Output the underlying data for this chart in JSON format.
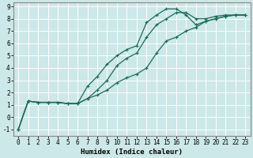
{
  "title": "",
  "xlabel": "Humidex (Indice chaleur)",
  "bg_color": "#cce8e8",
  "grid_color": "#ffffff",
  "line_color": "#1a6b5a",
  "xlim": [
    -0.5,
    23.5
  ],
  "ylim": [
    -1.5,
    9.3
  ],
  "xticks": [
    0,
    1,
    2,
    3,
    4,
    5,
    6,
    7,
    8,
    9,
    10,
    11,
    12,
    13,
    14,
    15,
    16,
    17,
    18,
    19,
    20,
    21,
    22,
    23
  ],
  "yticks": [
    -1,
    0,
    1,
    2,
    3,
    4,
    5,
    6,
    7,
    8,
    9
  ],
  "line1_x": [
    0,
    1,
    2,
    3,
    4,
    5,
    6,
    7,
    8,
    9,
    10,
    11,
    12,
    13,
    14,
    15,
    16,
    17,
    18,
    19,
    20,
    21,
    22,
    23
  ],
  "line1_y": [
    -1.0,
    1.3,
    1.2,
    1.2,
    1.2,
    1.1,
    1.1,
    1.5,
    1.8,
    2.2,
    2.8,
    3.2,
    3.5,
    4.0,
    5.2,
    6.2,
    6.5,
    7.0,
    7.3,
    7.8,
    8.0,
    8.2,
    8.3,
    8.3
  ],
  "line2_x": [
    0,
    1,
    2,
    3,
    4,
    5,
    6,
    7,
    8,
    9,
    10,
    11,
    12,
    13,
    14,
    15,
    16,
    17,
    18,
    19,
    20,
    21,
    22,
    23
  ],
  "line2_y": [
    -1.0,
    1.3,
    1.2,
    1.2,
    1.2,
    1.1,
    1.1,
    2.5,
    3.3,
    4.3,
    5.0,
    5.5,
    5.8,
    7.7,
    8.3,
    8.8,
    8.8,
    8.3,
    7.5,
    7.8,
    8.0,
    8.2,
    8.3,
    8.3
  ],
  "line3_x": [
    0,
    1,
    2,
    3,
    4,
    5,
    6,
    7,
    8,
    9,
    10,
    11,
    12,
    13,
    14,
    15,
    16,
    17,
    18,
    19,
    20,
    21,
    22,
    23
  ],
  "line3_y": [
    -1.0,
    1.3,
    1.2,
    1.2,
    1.2,
    1.1,
    1.1,
    1.5,
    2.2,
    3.0,
    4.2,
    4.8,
    5.2,
    6.5,
    7.5,
    8.0,
    8.5,
    8.5,
    8.0,
    8.0,
    8.2,
    8.3,
    8.3,
    8.3
  ],
  "marker": "+",
  "markersize": 3,
  "linewidth": 0.9,
  "tick_fontsize": 5.5,
  "xlabel_fontsize": 6.5,
  "spine_color": "#888888"
}
